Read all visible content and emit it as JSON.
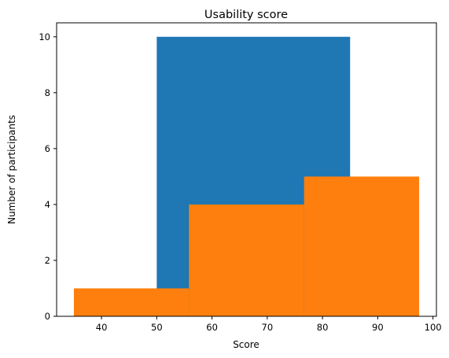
{
  "chart_data": {
    "type": "histogram",
    "title": "Usability score",
    "xlabel": "Score",
    "ylabel": "Number of participants",
    "xlim": [
      31.875,
      100.625
    ],
    "ylim": [
      0,
      10.5
    ],
    "xticks": [
      40,
      50,
      60,
      70,
      80,
      90,
      100
    ],
    "yticks": [
      0,
      2,
      4,
      6,
      8,
      10
    ],
    "grid": false,
    "series": [
      {
        "color": "#1f77b4",
        "bins": [
          {
            "x0": 50,
            "x1": 85,
            "count": 10
          }
        ]
      },
      {
        "color": "#ff7f0e",
        "bins": [
          {
            "x0": 35,
            "x1": 55.83,
            "count": 1
          },
          {
            "x0": 55.83,
            "x1": 76.67,
            "count": 4
          },
          {
            "x0": 76.67,
            "x1": 97.5,
            "count": 5
          }
        ]
      }
    ]
  }
}
